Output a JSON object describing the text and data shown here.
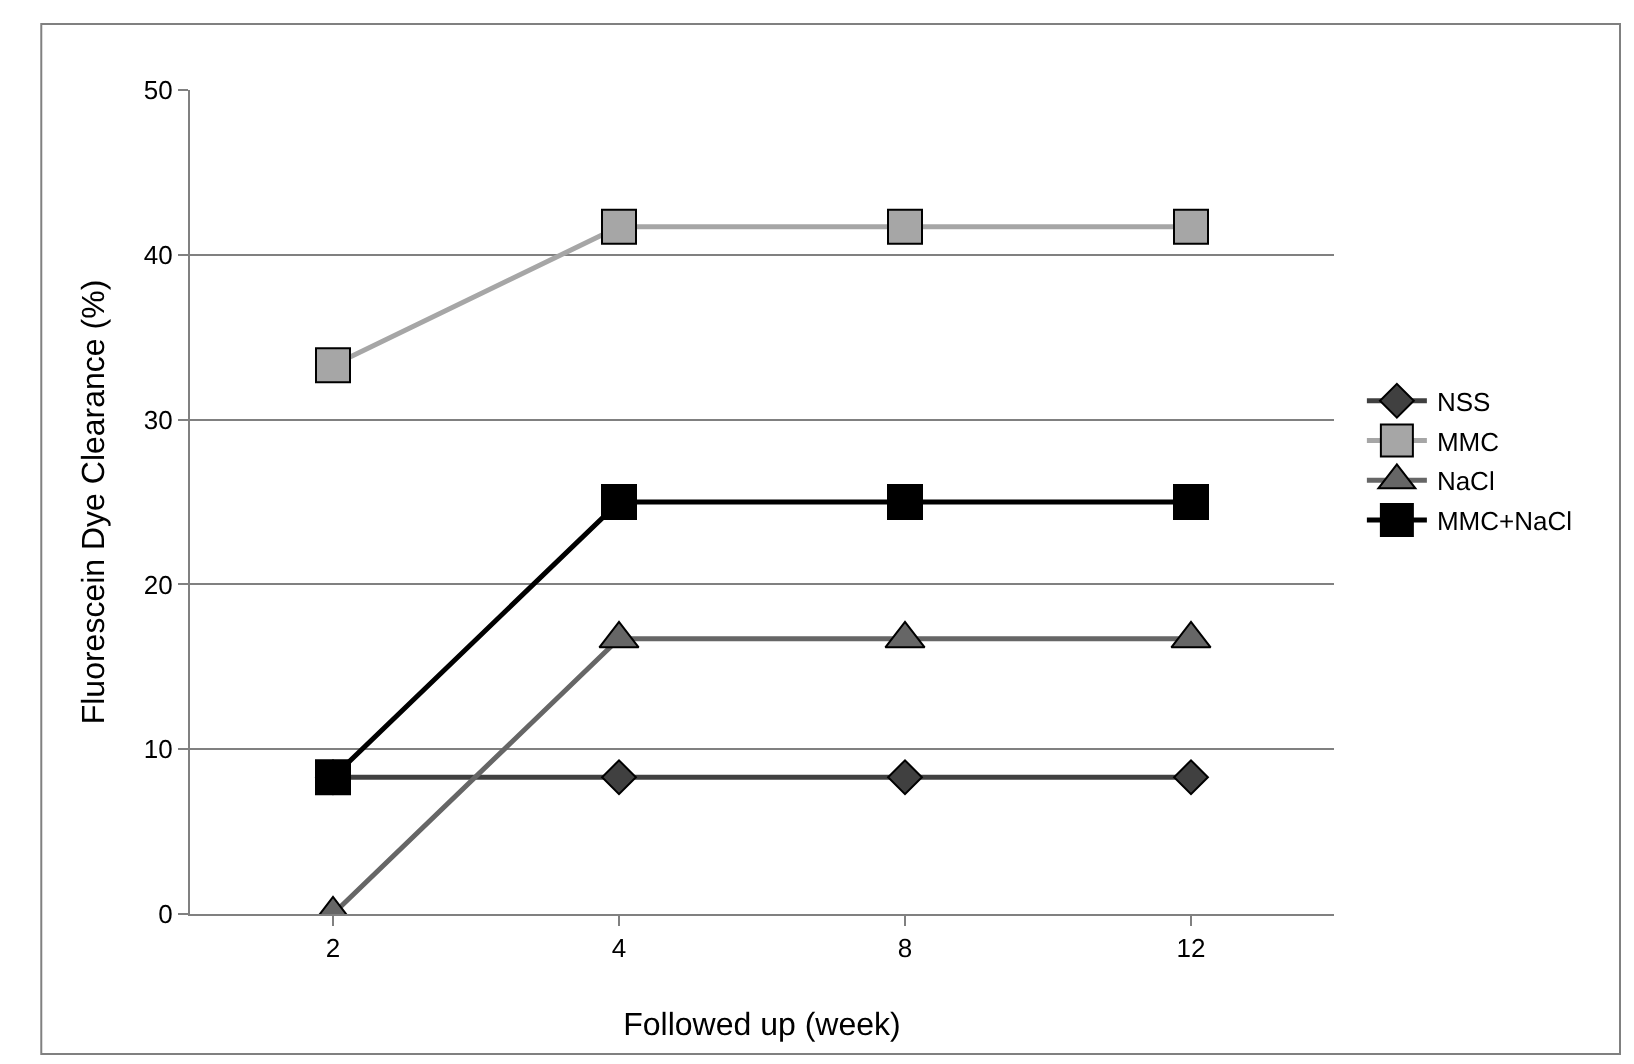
{
  "chart_data": {
    "type": "line",
    "xlabel": "Followed up (week)",
    "ylabel": "Fluorescein Dye Clearance (%)",
    "categories": [
      "2",
      "4",
      "8",
      "12"
    ],
    "series": [
      {
        "name": "NSS",
        "color": "#404040",
        "marker": "diamond",
        "values": [
          8.3,
          8.3,
          8.3,
          8.3
        ]
      },
      {
        "name": "MMC",
        "color": "#a6a6a6",
        "marker": "square",
        "values": [
          33.3,
          41.7,
          41.7,
          41.7
        ]
      },
      {
        "name": "NaCl",
        "color": "#666666",
        "marker": "triangle",
        "values": [
          0,
          16.7,
          16.7,
          16.7
        ]
      },
      {
        "name": "MMC+NaCl",
        "color": "#000000",
        "marker": "square",
        "values": [
          8.3,
          25,
          25,
          25
        ]
      }
    ],
    "ylim": [
      0,
      50
    ],
    "yticks": [
      0,
      10,
      20,
      30,
      40,
      50
    ],
    "grid": "y",
    "legend": "right"
  }
}
